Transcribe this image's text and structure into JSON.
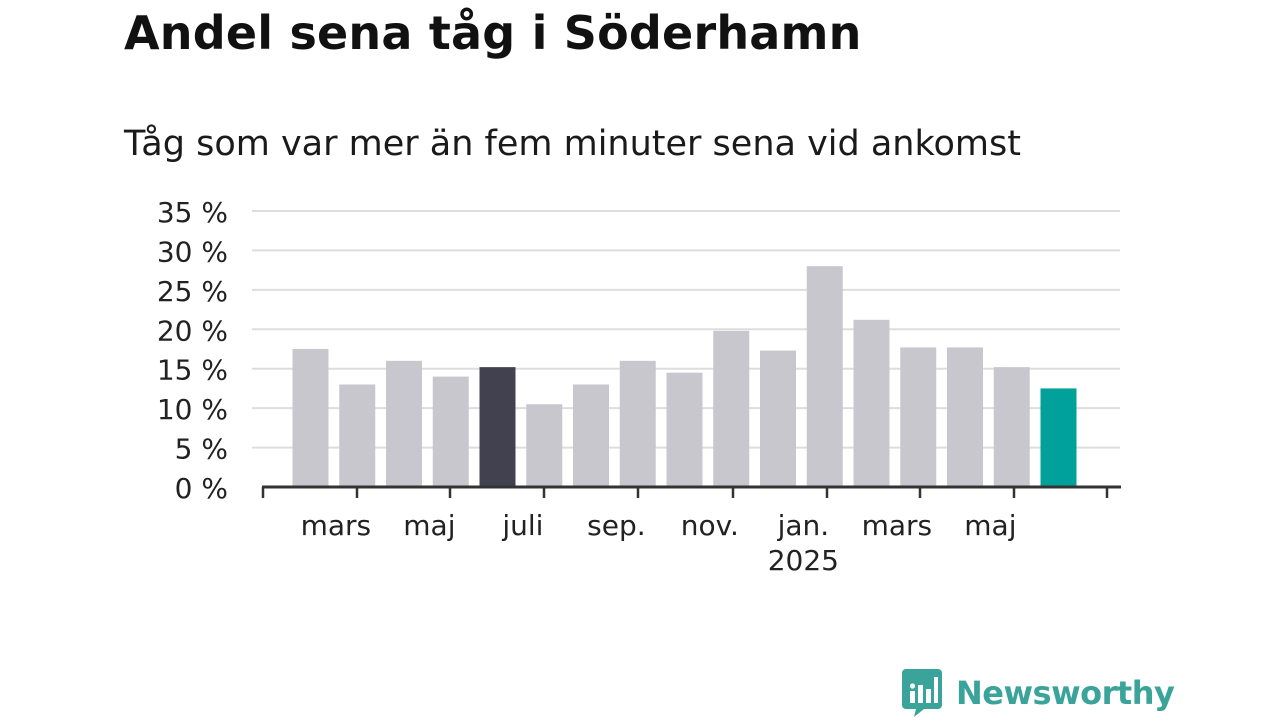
{
  "title": "Andel sena tåg i Söderhamn",
  "subtitle": "Tåg som var mer än fem minuter sena vid ankomst",
  "brand": "Newsworthy",
  "colors": {
    "bar": "#c8c7ce",
    "highlight_dark": "#42414f",
    "highlight_latest": "#00a19a",
    "grid": "#dddddd",
    "axis": "#333333",
    "brand": "#3aa39a"
  },
  "chart_data": {
    "type": "bar",
    "y_tick_labels": [
      "0 %",
      "5 %",
      "10 %",
      "15 %",
      "20 %",
      "25 %",
      "30 %",
      "35 %"
    ],
    "ylim": [
      0,
      35
    ],
    "grid": true,
    "values": [
      17.5,
      13,
      16,
      14,
      15.2,
      10.5,
      13,
      16,
      14.5,
      19.8,
      17.3,
      28,
      21.2,
      17.7,
      17.7,
      15.2,
      12.5
    ],
    "highlight": {
      "4": "dark",
      "16": "latest"
    },
    "x_tick_labels": [
      {
        "label": "mars",
        "bar": 1
      },
      {
        "label": "maj",
        "bar": 3
      },
      {
        "label": "juli",
        "bar": 5
      },
      {
        "label": "sep.",
        "bar": 7
      },
      {
        "label": "nov.",
        "bar": 9
      },
      {
        "label": "jan.",
        "bar": 11,
        "sublabel": "2025"
      },
      {
        "label": "mars",
        "bar": 13
      },
      {
        "label": "maj",
        "bar": 15
      }
    ]
  }
}
